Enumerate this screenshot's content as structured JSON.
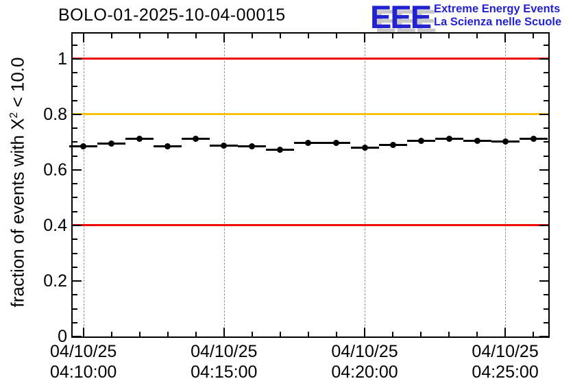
{
  "header": {
    "title": "BOLO-01-2025-10-04-00015",
    "logo": {
      "acronym": "EEE",
      "line1": "Extreme Energy Events",
      "line2": "La Scienza nelle Scuole",
      "color": "#2222d0",
      "shadow_color": "#c6c6c6"
    }
  },
  "chart_data": {
    "type": "scatter",
    "title": "BOLO-01-2025-10-04-00015",
    "ylabel": "fraction of events with X² < 10.0",
    "ylabel_prefix": "fraction of events with X",
    "ylabel_sup": "2",
    "ylabel_suffix": " < 10.0",
    "xlabel": "",
    "ylim": [
      0,
      1.091
    ],
    "xlim": [
      "04:09:37",
      "04:26:32"
    ],
    "grid": "vertical dashed lines at x major ticks",
    "legend": "none",
    "y_ticks": [
      {
        "value": 0,
        "label": "0"
      },
      {
        "value": 0.2,
        "label": "0.2"
      },
      {
        "value": 0.4,
        "label": "0.4"
      },
      {
        "value": 0.6,
        "label": "0.6"
      },
      {
        "value": 0.8,
        "label": "0.8"
      },
      {
        "value": 1,
        "label": "1"
      }
    ],
    "y_minor_step": 0.05,
    "y_major_step": 0.2,
    "x_ticks": [
      {
        "time": "04:10:00",
        "date_label": "04/10/25",
        "time_label": "04:10:00"
      },
      {
        "time": "04:15:00",
        "date_label": "04/10/25",
        "time_label": "04:15:00"
      },
      {
        "time": "04:20:00",
        "date_label": "04/10/25",
        "time_label": "04:20:00"
      },
      {
        "time": "04:25:00",
        "date_label": "04/10/25",
        "time_label": "04:25:00"
      }
    ],
    "x_minor_step_seconds": 60,
    "reference_lines": [
      {
        "value": 1.0,
        "color": "#ee0000"
      },
      {
        "value": 0.8,
        "color": "#fdc20a"
      },
      {
        "value": 0.4,
        "color": "#ee0000"
      }
    ],
    "colors": {
      "grid": "#8f8f8f",
      "marker": "#000000",
      "frame": "#000000"
    },
    "series": [
      {
        "name": "fraction of events with chi2 < 10.0",
        "marker": "filled-circle",
        "color": "#000000",
        "x_error_seconds": 30,
        "points": [
          {
            "time": "04:10:00",
            "value": 0.686
          },
          {
            "time": "04:11:00",
            "value": 0.694
          },
          {
            "time": "04:12:00",
            "value": 0.712
          },
          {
            "time": "04:13:00",
            "value": 0.686
          },
          {
            "time": "04:14:00",
            "value": 0.713
          },
          {
            "time": "04:15:00",
            "value": 0.688
          },
          {
            "time": "04:16:00",
            "value": 0.686
          },
          {
            "time": "04:17:00",
            "value": 0.673
          },
          {
            "time": "04:18:00",
            "value": 0.697
          },
          {
            "time": "04:19:00",
            "value": 0.697
          },
          {
            "time": "04:20:00",
            "value": 0.681
          },
          {
            "time": "04:21:00",
            "value": 0.689
          },
          {
            "time": "04:22:00",
            "value": 0.705
          },
          {
            "time": "04:23:00",
            "value": 0.713
          },
          {
            "time": "04:24:00",
            "value": 0.705
          },
          {
            "time": "04:25:00",
            "value": 0.702
          },
          {
            "time": "04:26:00",
            "value": 0.712
          }
        ]
      }
    ]
  }
}
